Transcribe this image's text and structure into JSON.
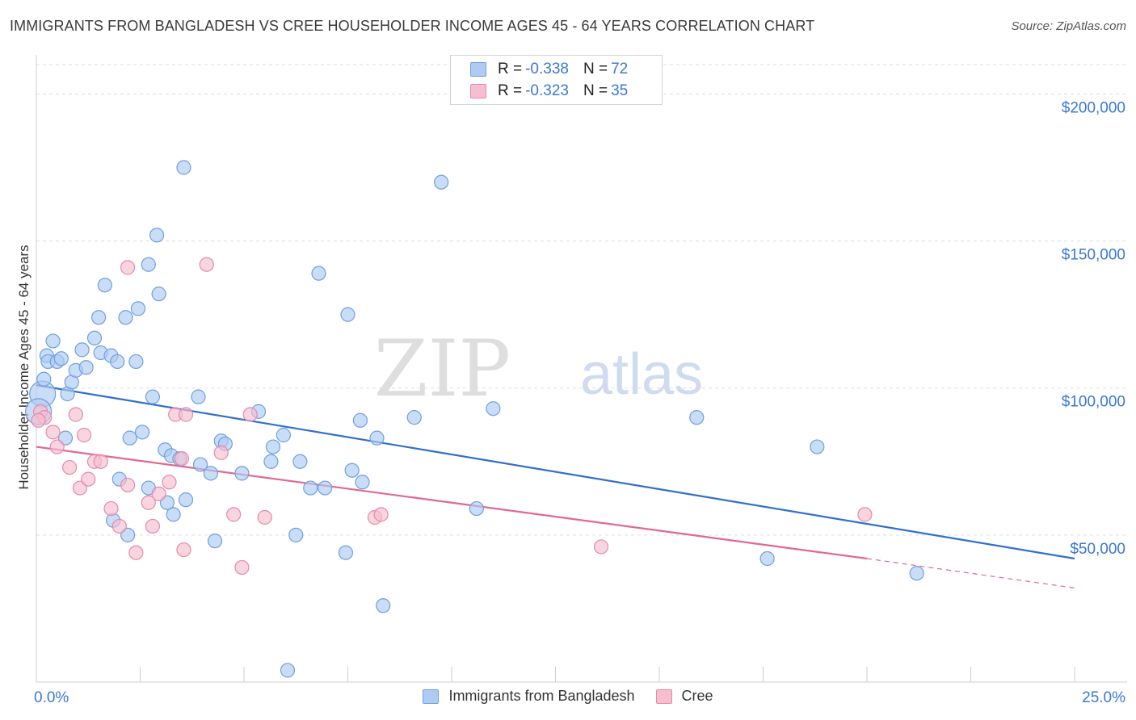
{
  "title": "IMMIGRANTS FROM BANGLADESH VS CREE HOUSEHOLDER INCOME AGES 45 - 64 YEARS CORRELATION CHART",
  "source": "Source: ZipAtlas.com",
  "watermark": {
    "zip": "ZIP",
    "atlas": "atlas"
  },
  "stats": [
    {
      "r_label": "R = ",
      "r_value": "-0.338",
      "n_label": "N = ",
      "n_value": "72"
    },
    {
      "r_label": "R = ",
      "r_value": "-0.323",
      "n_label": "N = ",
      "n_value": "35"
    }
  ],
  "colors": {
    "blue_fill": "#aecbf3",
    "blue_stroke": "#6f9fe0",
    "blue_line": "#2e6fd0",
    "pink_fill": "#f6bfd0",
    "pink_stroke": "#e58aa8",
    "pink_line": "#e2678f",
    "axis_label": "#3a78d6",
    "grid": "#dddddd"
  },
  "chart_data": {
    "type": "scatter",
    "title": "IMMIGRANTS FROM BANGLADESH VS CREE HOUSEHOLDER INCOME AGES 45 - 64 YEARS CORRELATION CHART",
    "xlabel": "",
    "ylabel": "Householder Income Ages 45 - 64 years",
    "xlim": [
      0,
      25
    ],
    "ylim": [
      0,
      210000
    ],
    "x_tick_labels": {
      "min": "0.0%",
      "max": "25.0%"
    },
    "y_ticks": [
      {
        "value": 50000,
        "label": "$50,000"
      },
      {
        "value": 100000,
        "label": "$100,000"
      },
      {
        "value": 150000,
        "label": "$150,000"
      },
      {
        "value": 200000,
        "label": "$200,000"
      }
    ],
    "grid": true,
    "legend_position": "bottom",
    "series": [
      {
        "name": "Immigrants from Bangladesh",
        "color": "blue",
        "trend": {
          "x0": 0,
          "y0": 101000,
          "x1": 25,
          "y1": 42000,
          "dashed_from": null
        },
        "points": [
          [
            0.15,
            98000
          ],
          [
            0.18,
            103000
          ],
          [
            0.25,
            111000
          ],
          [
            0.28,
            109000
          ],
          [
            0.4,
            116000
          ],
          [
            0.5,
            109000
          ],
          [
            0.6,
            110000
          ],
          [
            0.7,
            83000
          ],
          [
            0.75,
            98000
          ],
          [
            0.85,
            102000
          ],
          [
            0.95,
            106000
          ],
          [
            1.1,
            113000
          ],
          [
            1.2,
            107000
          ],
          [
            1.4,
            117000
          ],
          [
            1.5,
            124000
          ],
          [
            1.55,
            112000
          ],
          [
            1.65,
            135000
          ],
          [
            1.8,
            111000
          ],
          [
            1.85,
            55000
          ],
          [
            1.95,
            109000
          ],
          [
            2.0,
            69000
          ],
          [
            2.15,
            124000
          ],
          [
            2.2,
            50000
          ],
          [
            2.25,
            83000
          ],
          [
            2.4,
            109000
          ],
          [
            2.45,
            127000
          ],
          [
            2.55,
            85000
          ],
          [
            2.7,
            142000
          ],
          [
            2.7,
            66000
          ],
          [
            2.8,
            97000
          ],
          [
            2.9,
            152000
          ],
          [
            2.95,
            132000
          ],
          [
            3.1,
            79000
          ],
          [
            3.15,
            61000
          ],
          [
            3.25,
            77000
          ],
          [
            3.3,
            57000
          ],
          [
            3.45,
            76000
          ],
          [
            3.55,
            175000
          ],
          [
            3.6,
            62000
          ],
          [
            3.9,
            97000
          ],
          [
            3.95,
            74000
          ],
          [
            4.2,
            71000
          ],
          [
            4.3,
            48000
          ],
          [
            4.45,
            82000
          ],
          [
            4.55,
            81000
          ],
          [
            4.95,
            71000
          ],
          [
            5.35,
            92000
          ],
          [
            5.65,
            75000
          ],
          [
            5.7,
            80000
          ],
          [
            5.95,
            84000
          ],
          [
            6.05,
            4000
          ],
          [
            6.25,
            50000
          ],
          [
            6.35,
            75000
          ],
          [
            6.6,
            66000
          ],
          [
            6.8,
            139000
          ],
          [
            6.95,
            66000
          ],
          [
            7.45,
            44000
          ],
          [
            7.5,
            125000
          ],
          [
            7.6,
            72000
          ],
          [
            7.8,
            89000
          ],
          [
            7.85,
            68000
          ],
          [
            8.2,
            83000
          ],
          [
            8.35,
            26000
          ],
          [
            9.1,
            90000
          ],
          [
            9.75,
            170000
          ],
          [
            10.6,
            59000
          ],
          [
            11.0,
            93000
          ],
          [
            15.9,
            90000
          ],
          [
            17.6,
            42000
          ],
          [
            18.8,
            80000
          ],
          [
            21.2,
            37000
          ],
          [
            0.05,
            92000
          ]
        ]
      },
      {
        "name": "Cree",
        "color": "pink",
        "trend": {
          "x0": 0,
          "y0": 80000,
          "x1": 20,
          "y1": 42000,
          "dashed_to_x": 25,
          "dashed_to_y": 32000
        },
        "points": [
          [
            0.1,
            92000
          ],
          [
            0.2,
            90000
          ],
          [
            0.4,
            85000
          ],
          [
            0.5,
            80000
          ],
          [
            0.8,
            73000
          ],
          [
            0.95,
            91000
          ],
          [
            1.05,
            66000
          ],
          [
            1.15,
            84000
          ],
          [
            1.25,
            69000
          ],
          [
            1.4,
            75000
          ],
          [
            1.55,
            75000
          ],
          [
            1.8,
            59000
          ],
          [
            2.0,
            53000
          ],
          [
            2.2,
            67000
          ],
          [
            2.2,
            141000
          ],
          [
            2.4,
            44000
          ],
          [
            2.7,
            61000
          ],
          [
            2.8,
            53000
          ],
          [
            2.95,
            64000
          ],
          [
            3.2,
            68000
          ],
          [
            3.35,
            91000
          ],
          [
            3.5,
            76000
          ],
          [
            3.55,
            45000
          ],
          [
            3.6,
            91000
          ],
          [
            4.1,
            142000
          ],
          [
            4.45,
            78000
          ],
          [
            4.75,
            57000
          ],
          [
            4.95,
            39000
          ],
          [
            5.15,
            91000
          ],
          [
            5.5,
            56000
          ],
          [
            8.15,
            56000
          ],
          [
            8.3,
            57000
          ],
          [
            13.6,
            46000
          ],
          [
            19.95,
            57000
          ],
          [
            0.05,
            89000
          ]
        ]
      }
    ]
  }
}
